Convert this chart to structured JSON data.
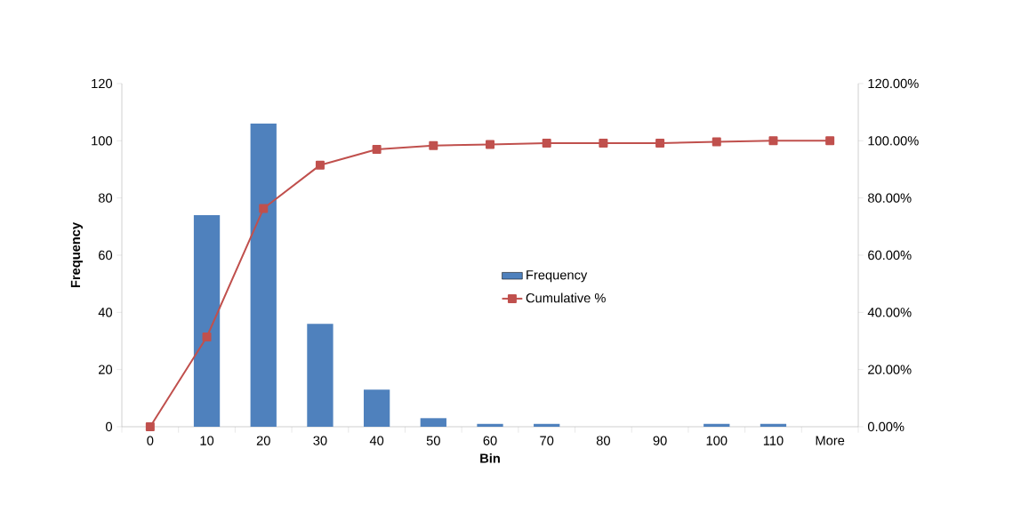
{
  "chart_data": {
    "type": "bar",
    "xlabel": "Bin",
    "ylabel": "Frequency",
    "categories": [
      "0",
      "10",
      "20",
      "30",
      "40",
      "50",
      "60",
      "70",
      "80",
      "90",
      "100",
      "110",
      "More"
    ],
    "series": [
      {
        "name": "Frequency",
        "color": "#4f81bd",
        "values": [
          0,
          74,
          106,
          36,
          13,
          3,
          1,
          1,
          0,
          0,
          1,
          1,
          0
        ]
      },
      {
        "name": "Cumulative %",
        "type": "line",
        "axis": "y2",
        "marker": "square",
        "color": "#c0504d",
        "values": [
          0,
          31.4,
          76.3,
          91.5,
          97.0,
          98.3,
          98.7,
          99.2,
          99.2,
          99.2,
          99.6,
          100,
          100
        ]
      }
    ],
    "ylim": [
      0,
      120
    ],
    "yticks": [
      0,
      20,
      40,
      60,
      80,
      100,
      120
    ],
    "y2lim": [
      0,
      120
    ],
    "y2ticks": [
      {
        "value": 0,
        "label": "0.00%"
      },
      {
        "value": 20,
        "label": "20.00%"
      },
      {
        "value": 40,
        "label": "40.00%"
      },
      {
        "value": 60,
        "label": "60.00%"
      },
      {
        "value": 80,
        "label": "80.00%"
      },
      {
        "value": 100,
        "label": "100.00%"
      },
      {
        "value": 120,
        "label": "120.00%"
      }
    ],
    "legend": "center",
    "grid": false
  }
}
